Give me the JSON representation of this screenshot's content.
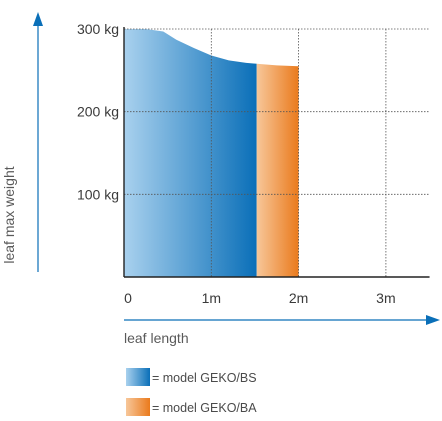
{
  "chart_data": {
    "type": "area",
    "title": "",
    "xlabel": "leaf length",
    "ylabel": "leaf max weight",
    "xlim": [
      0,
      3.5
    ],
    "ylim": [
      0,
      300
    ],
    "grid": true,
    "x_tick_labels": [
      "0",
      "1m",
      "2m",
      "3m"
    ],
    "x_tick_values": [
      0,
      1,
      2,
      3
    ],
    "y_tick_labels": [
      "100 kg",
      "200 kg",
      "300 kg"
    ],
    "y_tick_values": [
      100,
      200,
      300
    ],
    "series": [
      {
        "name": "= model GEKO/BS",
        "color_light": "#a9d1ee",
        "color_dark": "#0a6fb8",
        "x": [
          0,
          0.25,
          0.45,
          0.6,
          0.8,
          1.0,
          1.2,
          1.4,
          1.52
        ],
        "y": [
          300,
          300,
          297,
          287,
          277,
          268,
          262,
          259,
          258
        ]
      },
      {
        "name": "= model GEKO/BA",
        "color_light": "#f7c79a",
        "color_dark": "#ea7a1c",
        "x": [
          1.52,
          1.75,
          2.0
        ],
        "y": [
          258,
          256,
          255
        ]
      }
    ],
    "legend_position": "bottom-left"
  }
}
